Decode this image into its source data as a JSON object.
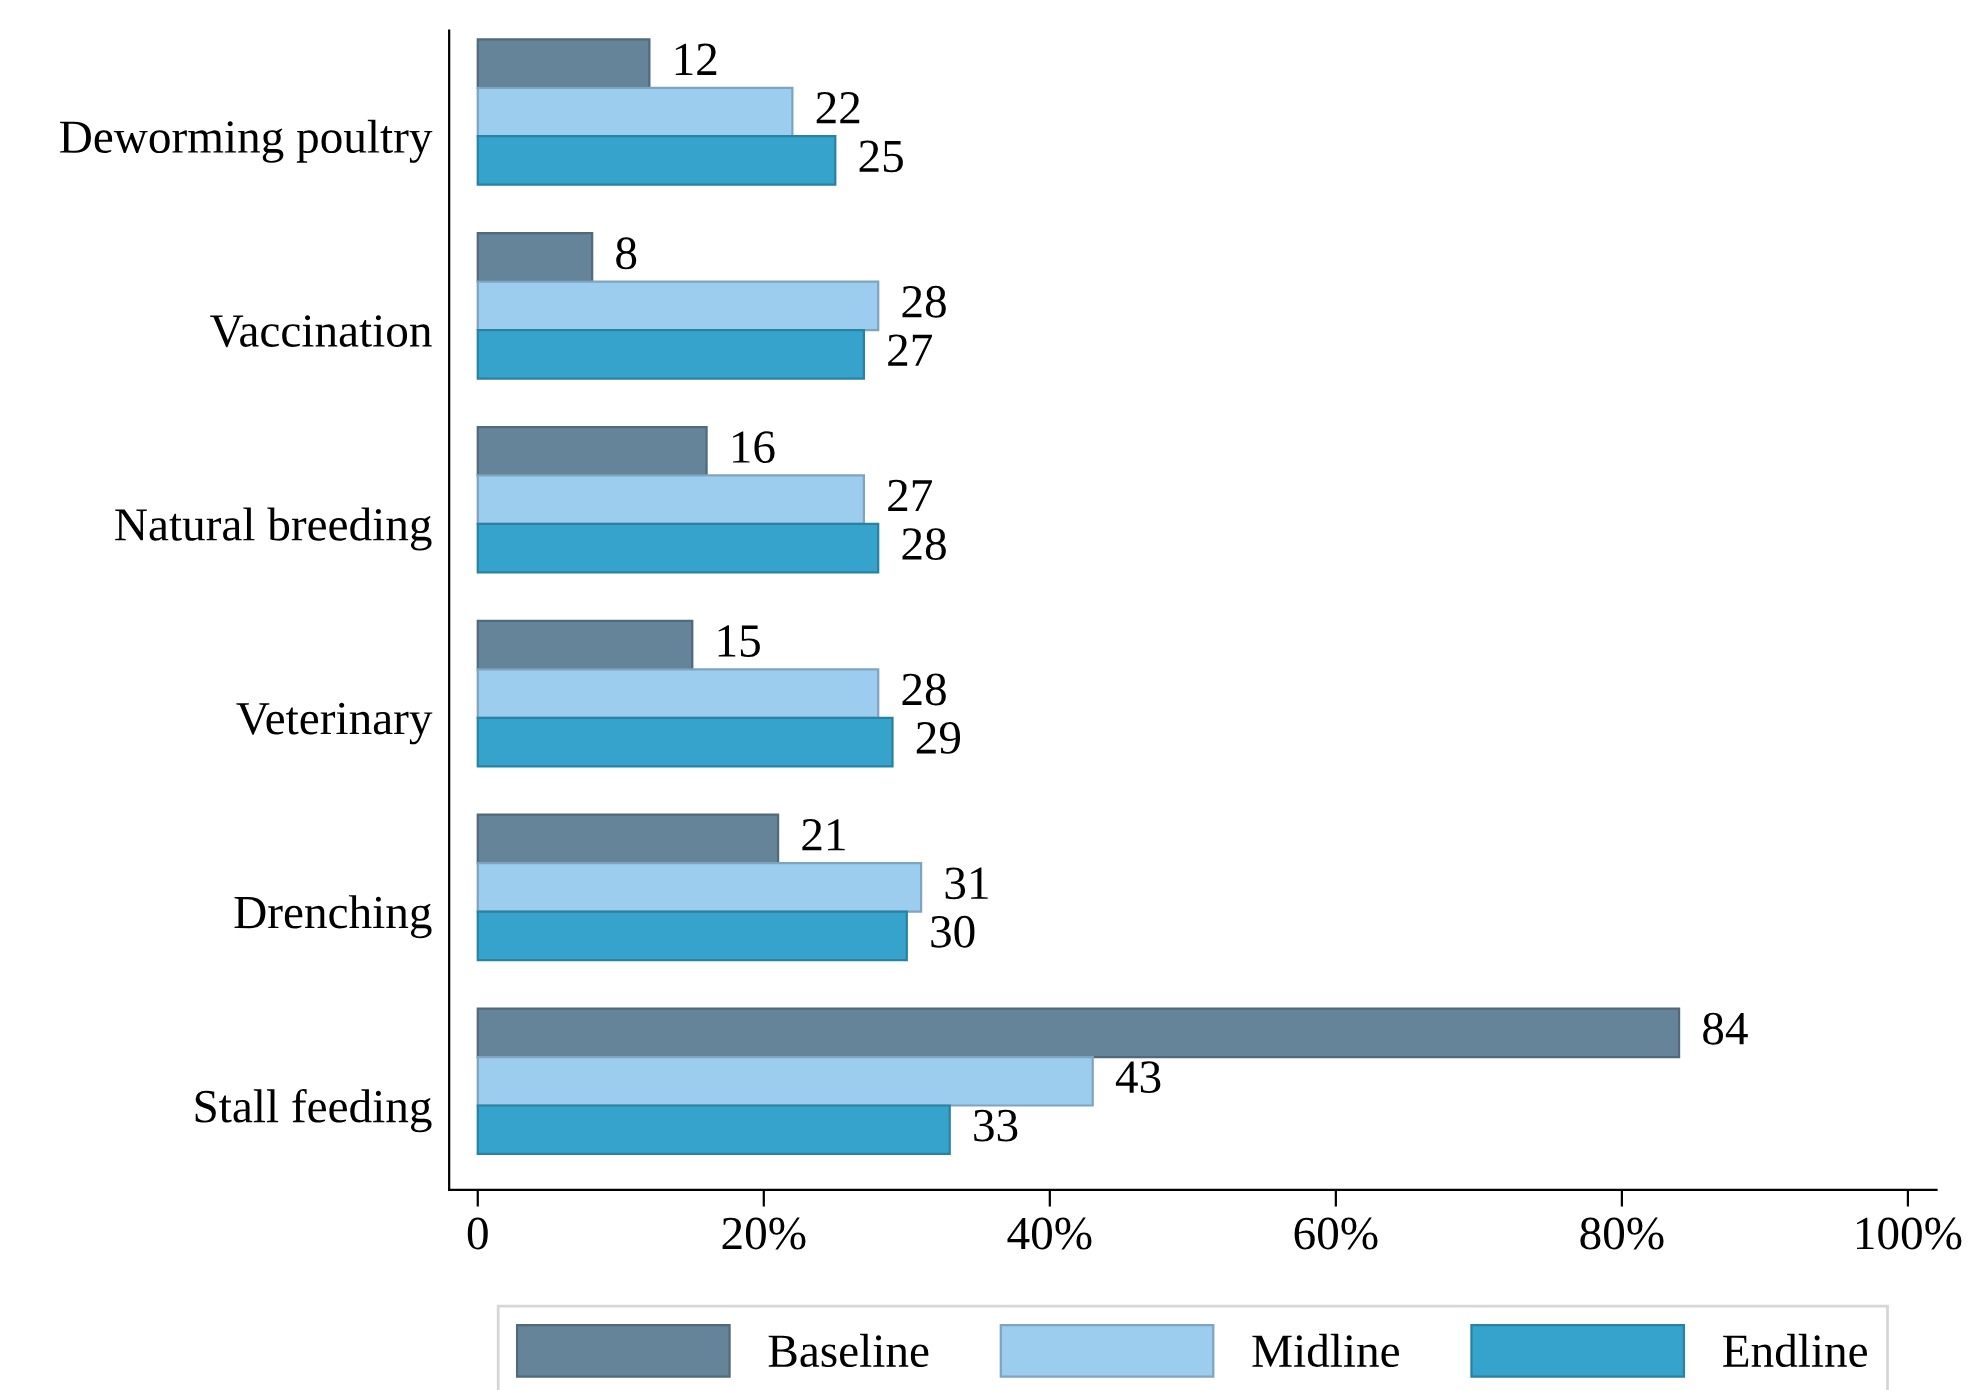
{
  "chart_data": {
    "type": "bar",
    "orientation": "horizontal",
    "categories": [
      "Deworming poultry",
      "Vaccination",
      "Natural breeding",
      "Veterinary",
      "Drenching",
      "Stall feeding"
    ],
    "series": [
      {
        "name": "Baseline",
        "color": "#65849a",
        "values": [
          12,
          8,
          16,
          15,
          21,
          84
        ]
      },
      {
        "name": "Midline",
        "color": "#9dcdee",
        "values": [
          22,
          28,
          27,
          28,
          31,
          43
        ]
      },
      {
        "name": "Endline",
        "color": "#35a3cb",
        "values": [
          25,
          27,
          28,
          29,
          30,
          33
        ]
      }
    ],
    "xlim": [
      -2,
      102
    ],
    "xticks": [
      0,
      {
        "value": 20,
        "label": "20%"
      },
      {
        "value": 40,
        "label": "40%"
      },
      {
        "value": 60,
        "label": "60%"
      },
      {
        "value": 80,
        "label": "80%"
      },
      {
        "value": 100,
        "label": "100%"
      }
    ],
    "data_labels": true,
    "grid": false,
    "legend": "bottom"
  }
}
